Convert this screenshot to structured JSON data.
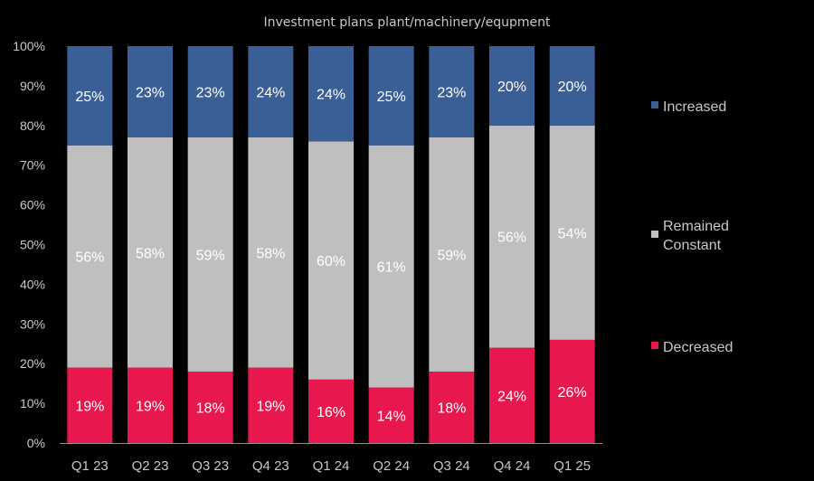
{
  "chart_data": {
    "type": "bar",
    "stacked": true,
    "title": "Investment plans plant/machinery/equpment",
    "categories": [
      "Q1 23",
      "Q2 23",
      "Q3 23",
      "Q4 23",
      "Q1 24",
      "Q2 24",
      "Q3 24",
      "Q4 24",
      "Q1 25"
    ],
    "series": [
      {
        "name": "Decreased",
        "color": "#E8184E",
        "values": [
          19,
          19,
          18,
          19,
          16,
          14,
          18,
          24,
          26
        ]
      },
      {
        "name": "Remained Constant",
        "color": "#BFBFBF",
        "values": [
          56,
          58,
          59,
          58,
          60,
          61,
          59,
          56,
          54
        ]
      },
      {
        "name": "Increased",
        "color": "#3A5F96",
        "values": [
          25,
          23,
          23,
          24,
          24,
          25,
          23,
          20,
          20
        ]
      }
    ],
    "ylim": [
      0,
      100
    ],
    "yticks": [
      "0%",
      "10%",
      "20%",
      "30%",
      "40%",
      "50%",
      "60%",
      "70%",
      "80%",
      "90%",
      "100%"
    ],
    "data_label_suffix": "%",
    "legend_position": "right",
    "background": "#000000",
    "text_color": "#C8C8C8"
  }
}
